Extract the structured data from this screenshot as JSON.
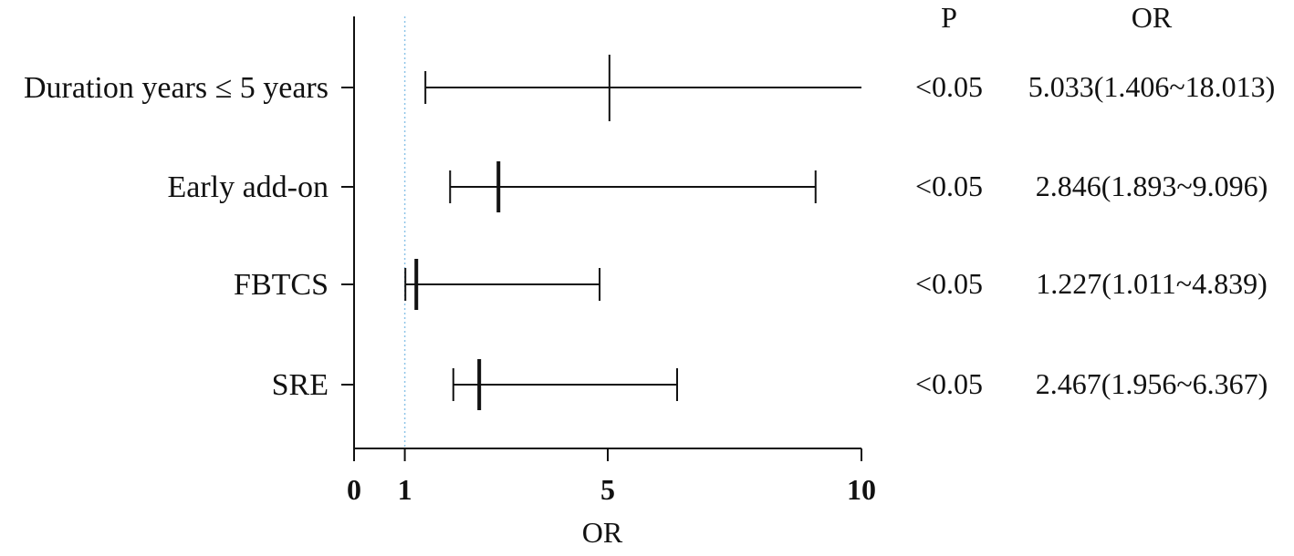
{
  "chart_data": {
    "type": "forest",
    "xlabel": "OR",
    "xlim": [
      0,
      10
    ],
    "xticks": [
      "0",
      "1",
      "5",
      "10"
    ],
    "xtick_values": [
      0,
      1,
      5,
      10
    ],
    "reference_line": 1,
    "columns": {
      "p_header": "P",
      "or_header": "OR"
    },
    "rows": [
      {
        "label": "Duration years ≤ 5 years",
        "or": 5.033,
        "low": 1.406,
        "high": 18.013,
        "p": "<0.05",
        "or_text": "5.033(1.406~18.013)"
      },
      {
        "label": "Early add-on",
        "or": 2.846,
        "low": 1.893,
        "high": 9.096,
        "p": "<0.05",
        "or_text": "2.846(1.893~9.096)"
      },
      {
        "label": "FBTCS",
        "or": 1.227,
        "low": 1.011,
        "high": 4.839,
        "p": "<0.05",
        "or_text": "1.227(1.011~4.839)"
      },
      {
        "label": "SRE",
        "or": 2.467,
        "low": 1.956,
        "high": 6.367,
        "p": "<0.05",
        "or_text": "2.467(1.956~6.367)"
      }
    ],
    "colors": {
      "marks": "#111111",
      "reference_line": "#8ec5e8"
    }
  }
}
